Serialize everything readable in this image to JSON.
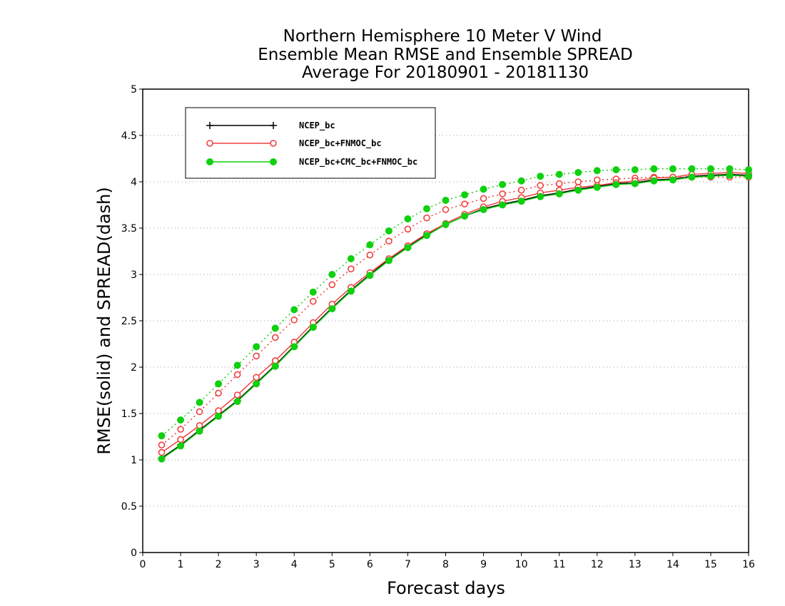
{
  "chart_data": {
    "type": "line",
    "title_lines": [
      "Northern Hemisphere 10 Meter V Wind",
      "Ensemble Mean RMSE and Ensemble SPREAD",
      "Average For 20180901 - 20181130"
    ],
    "xlabel": "Forecast days",
    "ylabel": "RMSE(solid) and SPREAD(dash)",
    "xlim": [
      0,
      16
    ],
    "ylim": [
      0,
      5
    ],
    "xticks": [
      "0",
      "1",
      "2",
      "3",
      "4",
      "5",
      "6",
      "7",
      "8",
      "9",
      "10",
      "11",
      "12",
      "13",
      "14",
      "15",
      "16"
    ],
    "yticks": [
      "0",
      "0.5",
      "1",
      "1.5",
      "2",
      "2.5",
      "3",
      "3.5",
      "4",
      "4.5",
      "5"
    ],
    "grid": true,
    "legend_position": "top-left",
    "x": [
      0.5,
      1,
      1.5,
      2,
      2.5,
      3,
      3.5,
      4,
      4.5,
      5,
      5.5,
      6,
      6.5,
      7,
      7.5,
      8,
      8.5,
      9,
      9.5,
      10,
      10.5,
      11,
      11.5,
      12,
      12.5,
      13,
      13.5,
      14,
      14.5,
      15,
      15.5,
      16
    ],
    "series": [
      {
        "name": "NCEP_bc",
        "color": "#000000",
        "marker": "plus",
        "rmse": [
          1.02,
          1.16,
          1.32,
          1.48,
          1.64,
          1.83,
          2.02,
          2.23,
          2.44,
          2.64,
          2.83,
          3.0,
          3.16,
          3.3,
          3.43,
          3.54,
          3.63,
          3.71,
          3.76,
          3.8,
          3.85,
          3.88,
          3.92,
          3.95,
          3.98,
          3.99,
          4.02,
          4.03,
          4.06,
          4.07,
          4.08,
          4.07
        ],
        "spread": null
      },
      {
        "name": "NCEP_bc+FNMOC_bc",
        "color": "#f04040",
        "marker": "open-circle",
        "rmse": [
          1.08,
          1.22,
          1.37,
          1.53,
          1.7,
          1.89,
          2.07,
          2.27,
          2.48,
          2.68,
          2.86,
          3.02,
          3.17,
          3.31,
          3.44,
          3.55,
          3.65,
          3.73,
          3.79,
          3.83,
          3.88,
          3.91,
          3.94,
          3.96,
          3.99,
          4.01,
          4.04,
          4.05,
          4.08,
          4.09,
          4.1,
          4.09
        ],
        "spread": [
          1.16,
          1.33,
          1.52,
          1.72,
          1.92,
          2.12,
          2.32,
          2.51,
          2.71,
          2.89,
          3.06,
          3.21,
          3.36,
          3.49,
          3.61,
          3.7,
          3.76,
          3.82,
          3.87,
          3.91,
          3.96,
          3.98,
          4.0,
          4.02,
          4.03,
          4.04,
          4.05,
          4.05,
          4.05,
          4.05,
          4.05,
          4.05
        ]
      },
      {
        "name": "NCEP_bc+CMC_bc+FNMOC_bc",
        "color": "#10d010",
        "marker": "filled-circle",
        "rmse": [
          1.01,
          1.15,
          1.31,
          1.47,
          1.63,
          1.82,
          2.01,
          2.22,
          2.43,
          2.63,
          2.82,
          2.99,
          3.15,
          3.29,
          3.42,
          3.54,
          3.63,
          3.7,
          3.75,
          3.79,
          3.84,
          3.87,
          3.91,
          3.94,
          3.97,
          3.98,
          4.01,
          4.02,
          4.05,
          4.06,
          4.07,
          4.06
        ],
        "spread": [
          1.26,
          1.43,
          1.62,
          1.82,
          2.02,
          2.22,
          2.42,
          2.62,
          2.81,
          3.0,
          3.17,
          3.32,
          3.47,
          3.6,
          3.71,
          3.8,
          3.86,
          3.92,
          3.97,
          4.01,
          4.06,
          4.08,
          4.1,
          4.12,
          4.13,
          4.13,
          4.14,
          4.14,
          4.14,
          4.14,
          4.14,
          4.13
        ]
      }
    ]
  }
}
